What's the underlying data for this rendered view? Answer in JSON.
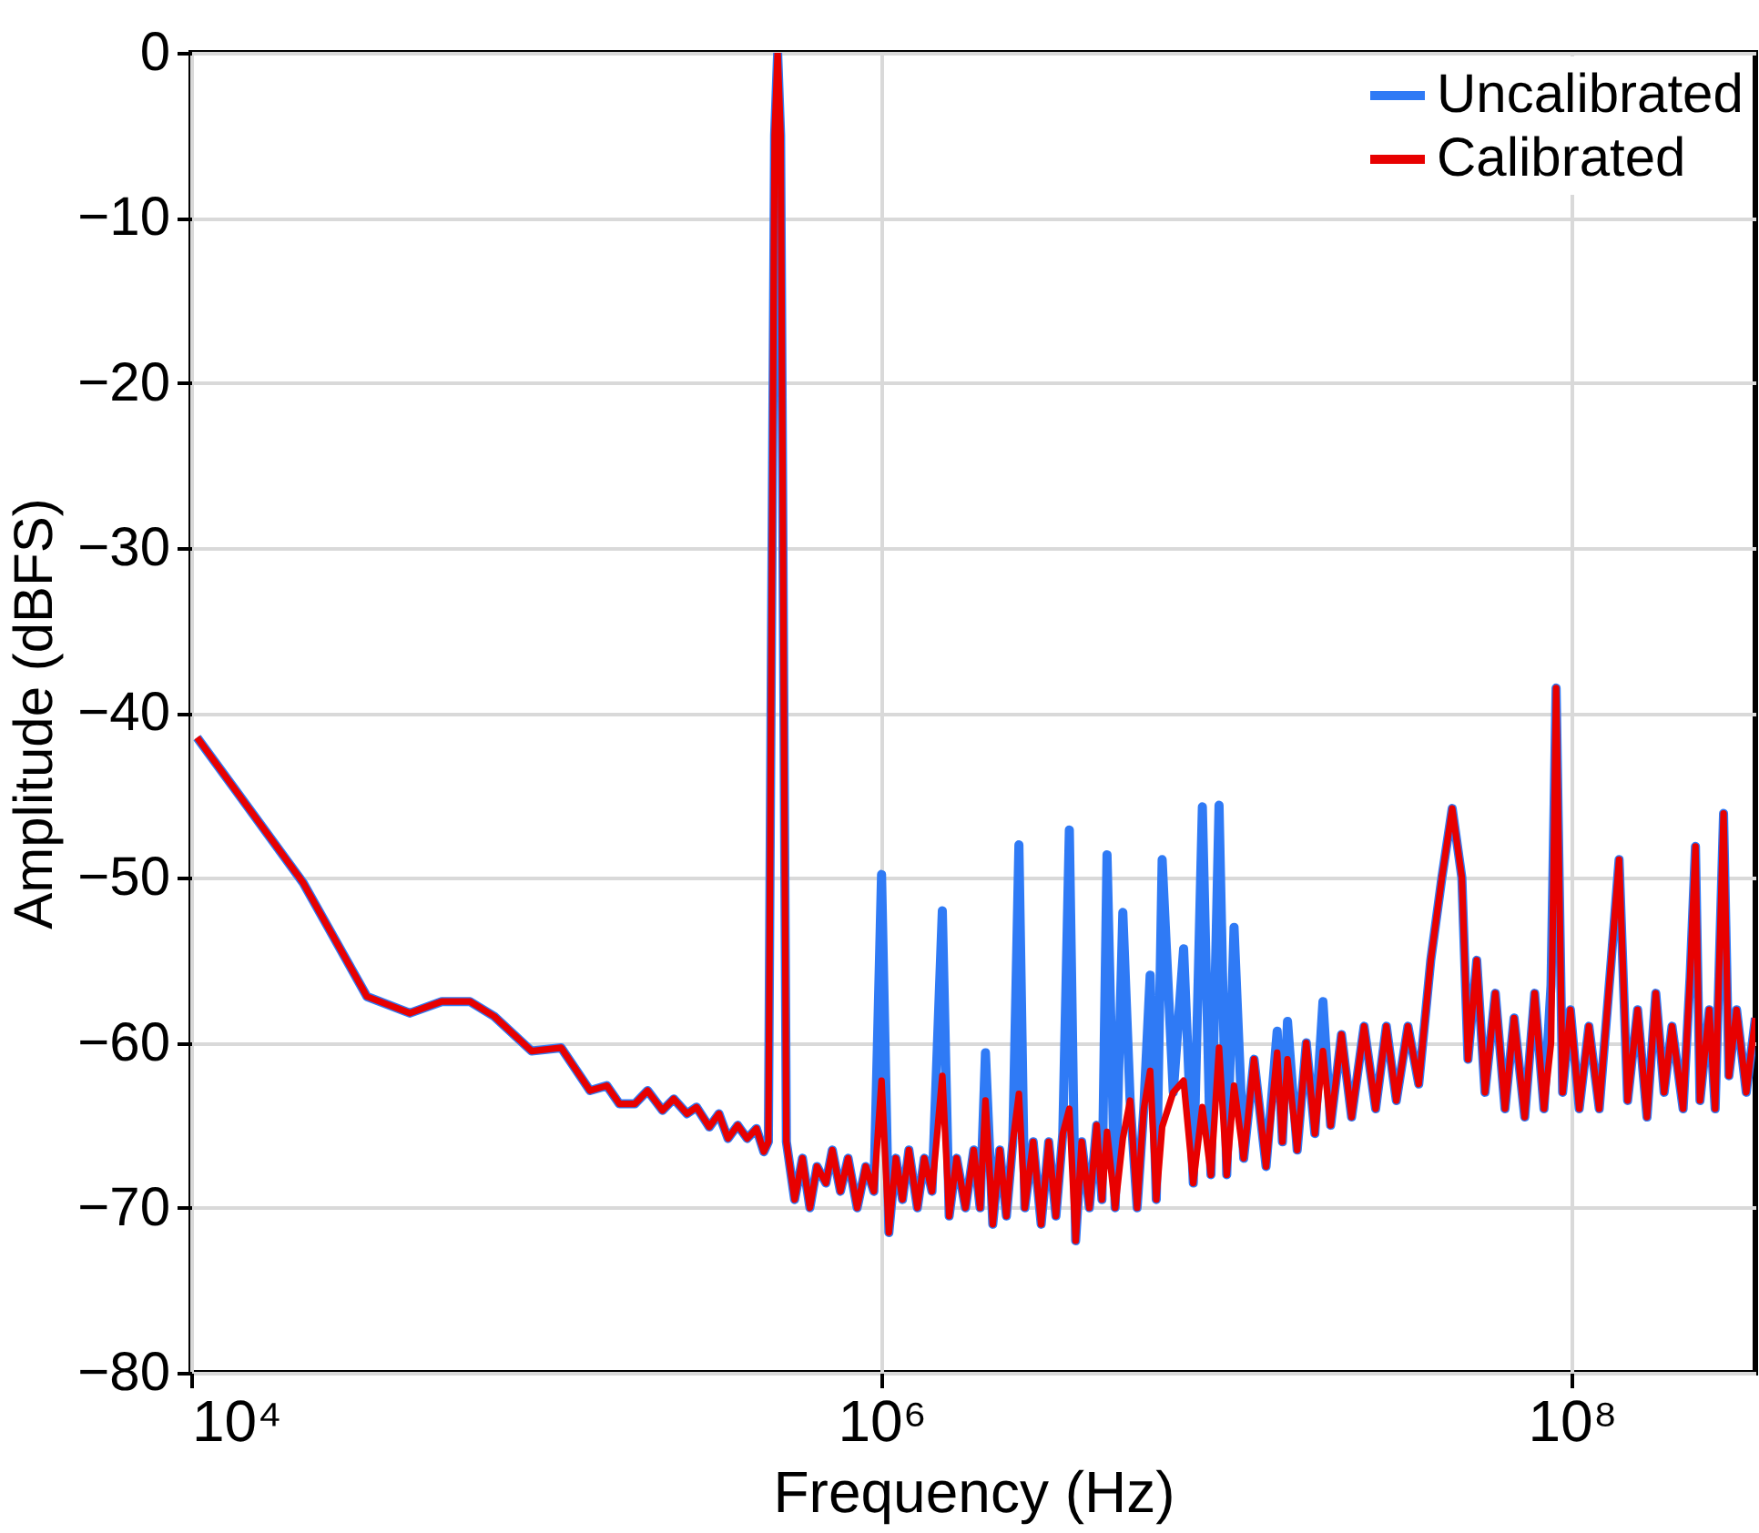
{
  "chart_data": {
    "type": "line",
    "xlabel": "Frequency (Hz)",
    "ylabel": "Amplitude (dBFS)",
    "log": "x",
    "grid": true,
    "legend": "top right",
    "line_style": "solid",
    "marker": "none",
    "xlim": [
      10000,
      340000000
    ],
    "xticks": [
      {
        "value": 10000,
        "label": "10⁴"
      },
      {
        "value": 1000000,
        "label": "10⁶"
      },
      {
        "value": 100000000,
        "label": "10⁸"
      }
    ],
    "ylim": [
      -80,
      0
    ],
    "yticks": [
      -80,
      -70,
      -60,
      -50,
      -40,
      -30,
      -20,
      -10,
      0
    ],
    "x": [
      10400,
      21100,
      32300,
      43000,
      53200,
      64200,
      75500,
      96900,
      118000,
      143000,
      160000,
      174000,
      193000,
      210000,
      232000,
      250000,
      273000,
      291000,
      317000,
      338000,
      359000,
      383000,
      408000,
      434000,
      456000,
      470000,
      490000,
      500000,
      510000,
      530000,
      560000,
      590000,
      620000,
      650000,
      690000,
      720000,
      760000,
      800000,
      850000,
      900000,
      950000,
      1000000,
      1050000,
      1100000,
      1150000,
      1200000,
      1270000,
      1330000,
      1400000,
      1500000,
      1570000,
      1650000,
      1750000,
      1850000,
      1930000,
      2000000,
      2100000,
      2200000,
      2300000,
      2400000,
      2500000,
      2600000,
      2750000,
      2900000,
      3050000,
      3200000,
      3350000,
      3500000,
      3650000,
      3800000,
      4000000,
      4200000,
      4350000,
      4500000,
      4750000,
      5000000,
      5250000,
      5500000,
      5750000,
      6000000,
      6250000,
      6500000,
      7000000,
      7500000,
      8000000,
      8500000,
      9000000,
      9500000,
      10000000,
      10500000,
      11200000,
      12000000,
      13000000,
      14000000,
      14500000,
      15000000,
      16000000,
      17000000,
      18000000,
      19000000,
      20000000,
      21500000,
      23000000,
      25000000,
      27000000,
      29000000,
      31000000,
      33500000,
      36000000,
      39000000,
      42000000,
      45000000,
      48000000,
      50000000,
      53000000,
      56000000,
      60000000,
      64000000,
      68000000,
      73000000,
      78000000,
      83000000,
      87000000,
      90000000,
      94000000,
      99000000,
      105000000,
      112000000,
      120000000,
      130000000,
      137000000,
      145000000,
      155000000,
      165000000,
      175000000,
      185000000,
      195000000,
      210000000,
      220000000,
      228000000,
      235000000,
      250000000,
      260000000,
      275000000,
      285000000,
      300000000,
      320000000,
      340000000
    ],
    "series": [
      {
        "name": "Uncalibrated",
        "color": "#2f7af5",
        "values": [
          -41.5,
          -50.3,
          -57.2,
          -58.2,
          -57.5,
          -57.5,
          -58.4,
          -60.5,
          -60.3,
          -62.9,
          -62.6,
          -63.7,
          -63.7,
          -62.9,
          -64.1,
          -63.4,
          -64.3,
          -63.9,
          -65.1,
          -64.3,
          -65.8,
          -65.0,
          -65.8,
          -65.2,
          -66.6,
          -66.0,
          -5,
          0,
          -5,
          -66,
          -69.5,
          -67,
          -70,
          -67.5,
          -68.5,
          -66.5,
          -69,
          -67,
          -70,
          -67.5,
          -69,
          -49.8,
          -71.5,
          -67,
          -69.5,
          -66.5,
          -70,
          -67,
          -69,
          -52,
          -70.5,
          -67,
          -70,
          -66.5,
          -70,
          -60.6,
          -71,
          -66.5,
          -70.5,
          -66,
          -48,
          -70,
          -66,
          -71,
          -66,
          -70.5,
          -65.5,
          -47.1,
          -72,
          -66,
          -70,
          -65,
          -69.5,
          -48.6,
          -70,
          -52.1,
          -63.5,
          -70,
          -64,
          -55.9,
          -69.5,
          -48.9,
          -63,
          -54.3,
          -68.5,
          -45.7,
          -68,
          -45.6,
          -68,
          -53,
          -67,
          -61,
          -67.5,
          -59.3,
          -66,
          -58.7,
          -66.5,
          -60,
          -65.5,
          -57.5,
          -65,
          -59.5,
          -64.5,
          -59,
          -64,
          -59,
          -63.5,
          -59,
          -62.5,
          -55,
          -50,
          -45.8,
          -50,
          -61,
          -55,
          -63,
          -57,
          -64,
          -58.5,
          -64.5,
          -57,
          -64,
          -56.5,
          -38.5,
          -63,
          -58,
          -64,
          -59,
          -64,
          -55,
          -48.9,
          -63.5,
          -58,
          -64.5,
          -57,
          -63,
          -59,
          -64,
          -56,
          -48.1,
          -63.5,
          -58,
          -64,
          -46.1,
          -62,
          -58,
          -63,
          -58.5
        ]
      },
      {
        "name": "Calibrated",
        "color": "#e80000",
        "values": [
          -41.5,
          -50.3,
          -57.2,
          -58.2,
          -57.5,
          -57.5,
          -58.4,
          -60.5,
          -60.3,
          -62.9,
          -62.6,
          -63.7,
          -63.7,
          -62.9,
          -64.1,
          -63.4,
          -64.3,
          -63.9,
          -65.1,
          -64.3,
          -65.8,
          -65.0,
          -65.8,
          -65.2,
          -66.6,
          -66.0,
          -5,
          0,
          -5,
          -66,
          -69.5,
          -67,
          -70,
          -67.5,
          -68.5,
          -66.5,
          -69,
          -67,
          -70,
          -67.5,
          -69,
          -62.3,
          -71.5,
          -67,
          -69.5,
          -66.5,
          -70,
          -67,
          -69,
          -62,
          -70.5,
          -67,
          -70,
          -66.5,
          -70,
          -63.5,
          -71,
          -66.5,
          -70.5,
          -66,
          -63.1,
          -70,
          -66,
          -71,
          -66,
          -70.5,
          -65.5,
          -64,
          -72,
          -66,
          -70,
          -65,
          -69.5,
          -65.4,
          -70,
          -65.8,
          -63.5,
          -70,
          -64,
          -61.7,
          -69.5,
          -65.1,
          -63,
          -62.3,
          -68.5,
          -63.9,
          -68,
          -60.3,
          -68,
          -62.6,
          -67,
          -61,
          -67.5,
          -60.6,
          -66,
          -61,
          -66.5,
          -60,
          -65.5,
          -60.5,
          -65,
          -59.5,
          -64.5,
          -59,
          -64,
          -59,
          -63.5,
          -59,
          -62.5,
          -55,
          -50,
          -45.8,
          -50,
          -61,
          -55,
          -63,
          -57,
          -64,
          -58.5,
          -64.5,
          -57,
          -64,
          -60,
          -38.5,
          -63,
          -58,
          -64,
          -59,
          -64,
          -55,
          -48.9,
          -63.5,
          -58,
          -64.5,
          -57,
          -63,
          -59,
          -64,
          -56,
          -48.1,
          -63.5,
          -58,
          -64,
          -46.1,
          -62,
          -58,
          -63,
          -58.5
        ]
      }
    ]
  }
}
